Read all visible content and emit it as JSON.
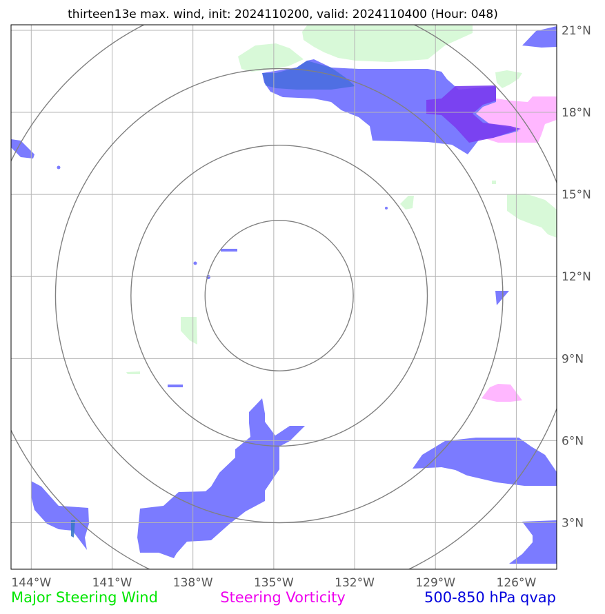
{
  "title": "thirteen13e max. wind, init: 2024110200, valid: 2024110400 (Hour: 048)",
  "map": {
    "lon_range": [
      -144.75,
      -124.5
    ],
    "lat_range": [
      1.3,
      21.2
    ],
    "lon_ticks": [
      {
        "value": -144,
        "label": "144°W"
      },
      {
        "value": -141,
        "label": "141°W"
      },
      {
        "value": -138,
        "label": "138°W"
      },
      {
        "value": -135,
        "label": "135°W"
      },
      {
        "value": -132,
        "label": "132°W"
      },
      {
        "value": -129,
        "label": "129°W"
      },
      {
        "value": -126,
        "label": "126°W"
      }
    ],
    "lat_ticks": [
      {
        "value": 3,
        "label": "3°N"
      },
      {
        "value": 6,
        "label": "6°N"
      },
      {
        "value": 9,
        "label": "9°N"
      },
      {
        "value": 12,
        "label": "12°N"
      },
      {
        "value": 15,
        "label": "15°N"
      },
      {
        "value": 18,
        "label": "18°N"
      },
      {
        "value": 21,
        "label": "21°N"
      }
    ],
    "storm_center": {
      "lon": -134.8,
      "lat": 11.3
    },
    "range_rings_deg": [
      2.75,
      5.5,
      8.3,
      11.1
    ],
    "colors": {
      "steering_wind": "#c8f7c8",
      "steering_vorticity": "#ffaaff",
      "qvap": "#7b7bff",
      "qvap_dense": "#7a3cf0",
      "grid": "#b4b4b4",
      "rings": "#808080"
    }
  },
  "legend": {
    "wind": {
      "label": "Major Steering Wind",
      "color": "#00e600"
    },
    "vorticity": {
      "label": "Steering Vorticity",
      "color": "#ee00ee"
    },
    "qvap": {
      "label": "500-850 hPa qvap",
      "color": "#0000dd"
    }
  }
}
